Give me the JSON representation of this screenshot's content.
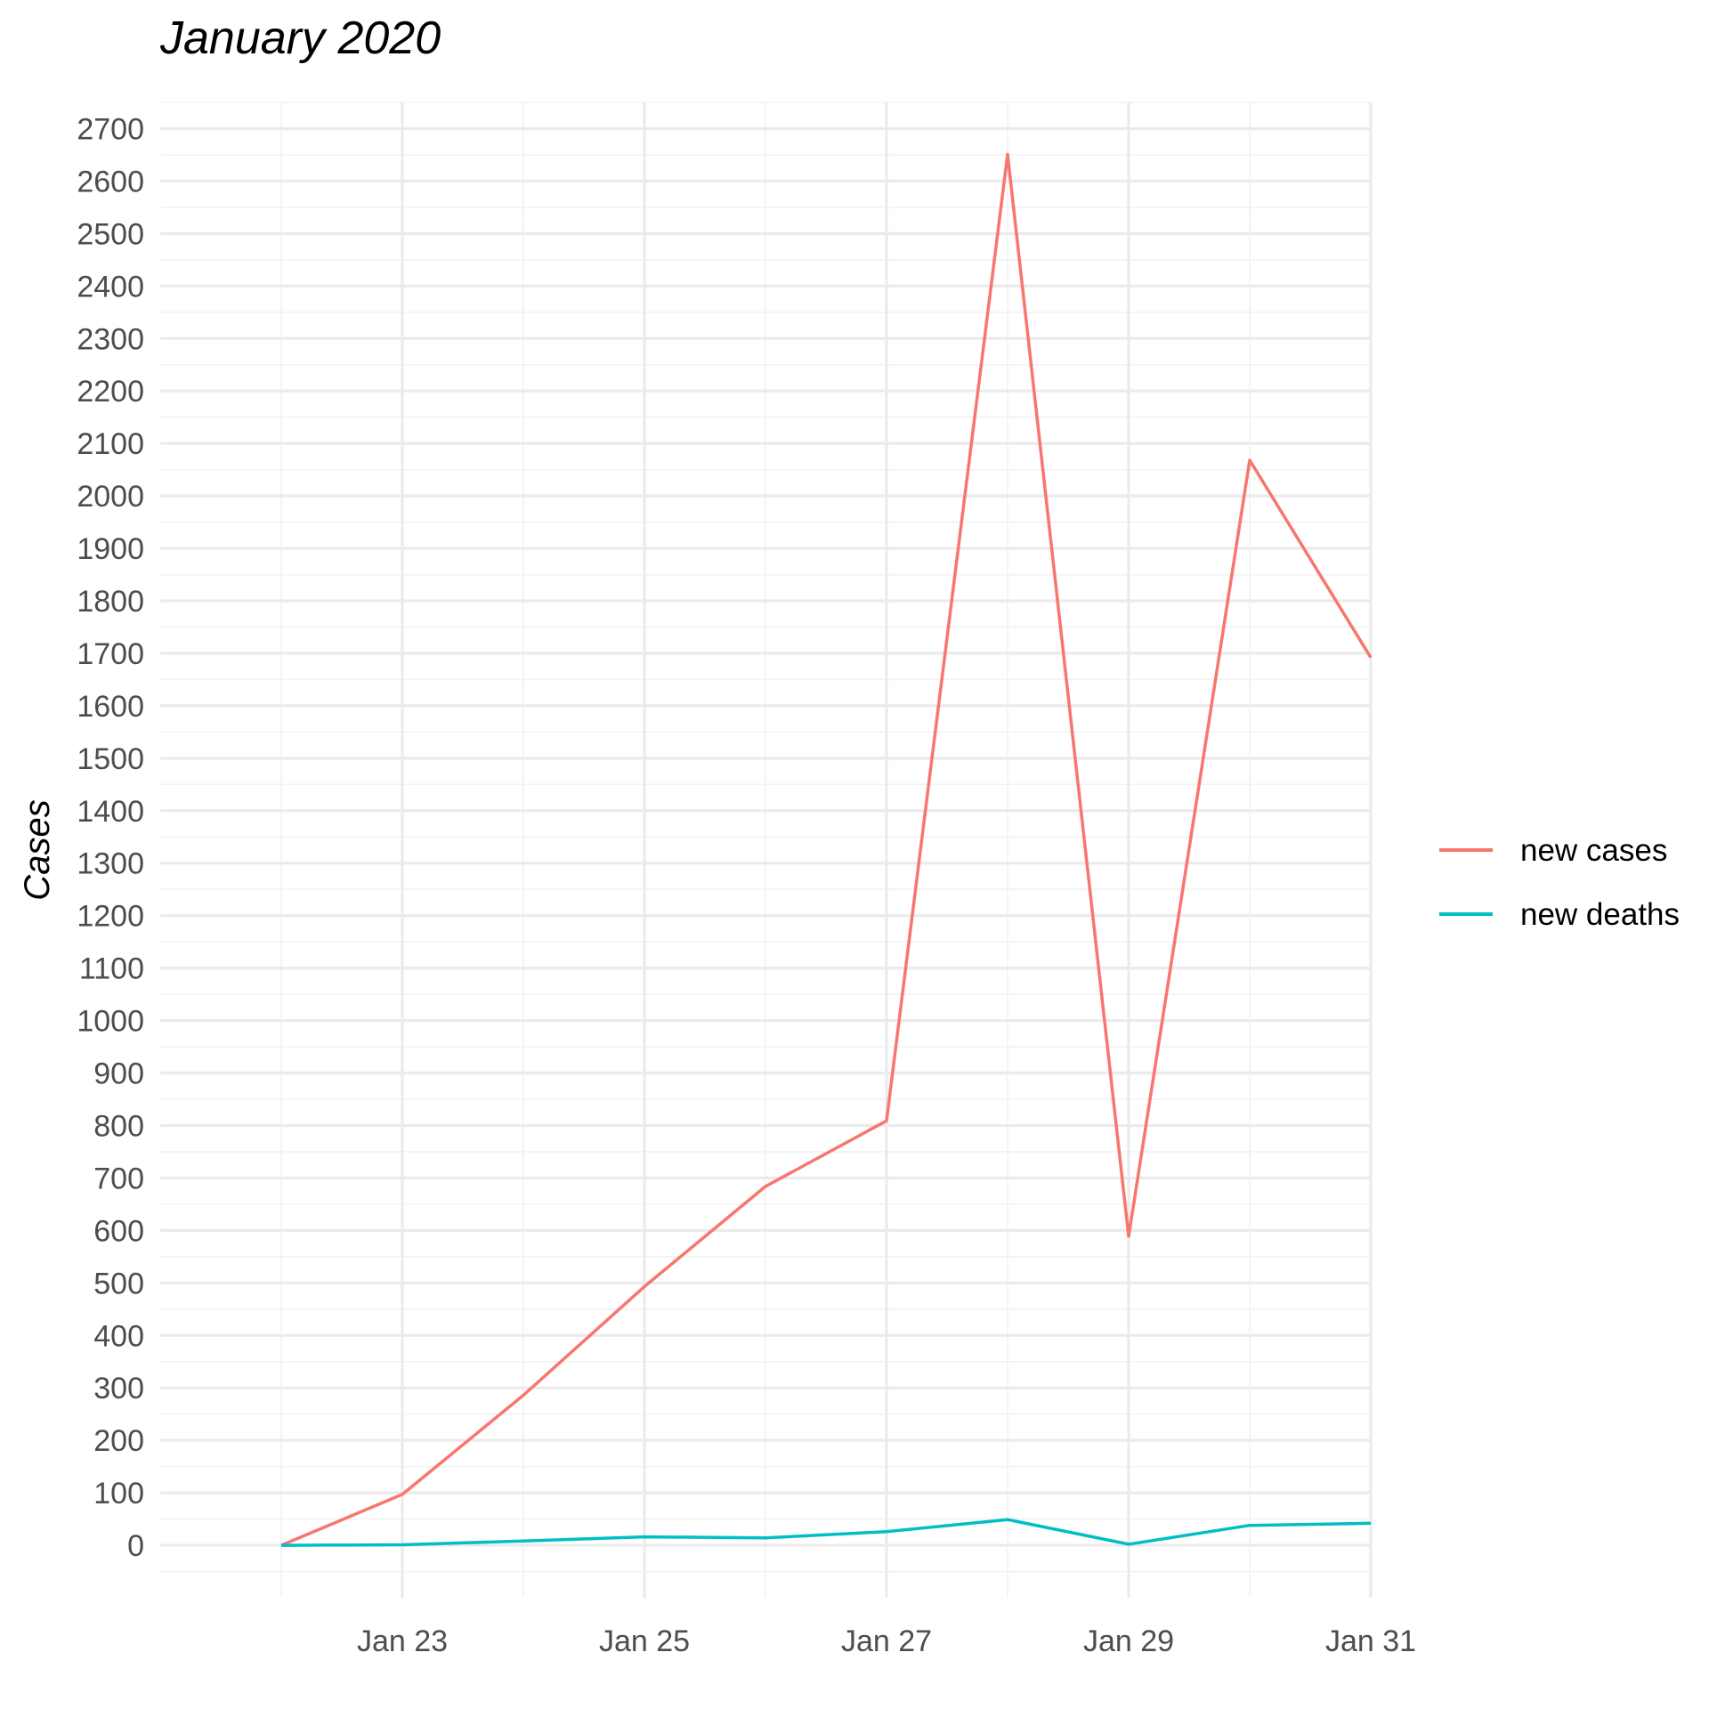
{
  "chart_data": {
    "type": "line",
    "title": "January 2020",
    "xlabel": "",
    "ylabel": "Cases",
    "x": [
      "2020-01-22",
      "2020-01-23",
      "2020-01-24",
      "2020-01-25",
      "2020-01-26",
      "2020-01-27",
      "2020-01-28",
      "2020-01-29",
      "2020-01-30",
      "2020-01-31"
    ],
    "x_ticks": [
      {
        "date": "2020-01-23",
        "label": "Jan 23"
      },
      {
        "date": "2020-01-25",
        "label": "Jan 25"
      },
      {
        "date": "2020-01-27",
        "label": "Jan 27"
      },
      {
        "date": "2020-01-29",
        "label": "Jan 29"
      },
      {
        "date": "2020-01-31",
        "label": "Jan 31"
      }
    ],
    "xlim": [
      "2020-01-21",
      "2020-01-31"
    ],
    "ylim": [
      -100,
      2750
    ],
    "y_ticks": [
      0,
      100,
      200,
      300,
      400,
      500,
      600,
      700,
      800,
      900,
      1000,
      1100,
      1200,
      1300,
      1400,
      1500,
      1600,
      1700,
      1800,
      1900,
      2000,
      2100,
      2200,
      2300,
      2400,
      2500,
      2600,
      2700
    ],
    "series": [
      {
        "name": "new cases",
        "color": "#F8766D",
        "values": [
          0,
          97,
          286,
          493,
          684,
          809,
          2651,
          589,
          2068,
          1692
        ]
      },
      {
        "name": "new deaths",
        "color": "#00BFC4",
        "values": [
          0,
          1,
          8,
          16,
          14,
          26,
          49,
          2,
          38,
          42
        ]
      }
    ],
    "grid": true,
    "legend_position": "right"
  }
}
